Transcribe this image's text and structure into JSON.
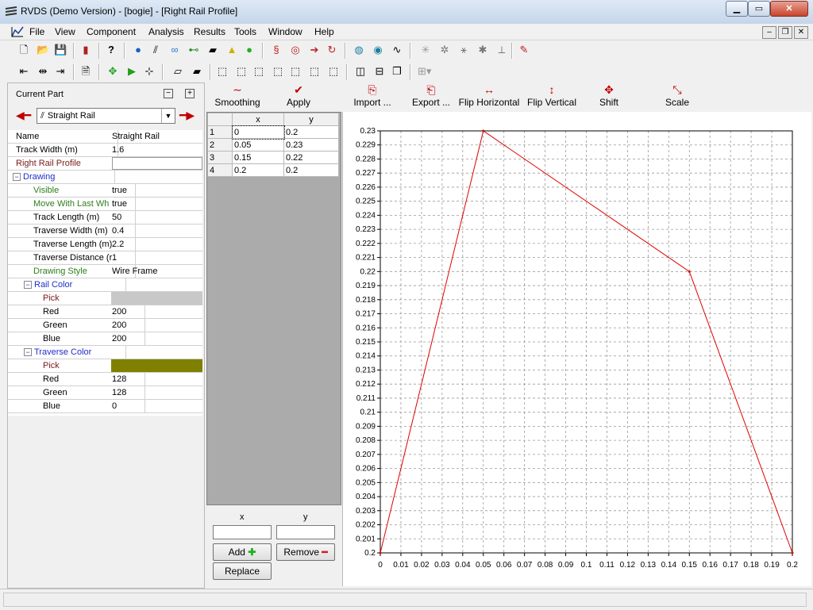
{
  "window": {
    "title": "RVDS (Demo Version) - [bogie] - [Right Rail Profile]"
  },
  "menu": [
    "File",
    "View",
    "Component",
    "Analysis",
    "Results",
    "Tools",
    "Window",
    "Help"
  ],
  "current_part": {
    "label": "Current Part",
    "selected": "Straight Rail"
  },
  "properties": [
    {
      "name": "Name",
      "value": "Straight Rail",
      "style": "plain",
      "indent": 0
    },
    {
      "name": "Track Width (m)",
      "value": "1.6",
      "style": "plain",
      "indent": 0
    },
    {
      "name": "Right Rail Profile",
      "value": "",
      "style": "maroon",
      "indent": 0
    },
    {
      "name": "Drawing",
      "value": "",
      "style": "cat",
      "indent": 0,
      "category": true
    },
    {
      "name": "Visible",
      "value": "true",
      "style": "green",
      "indent": 1
    },
    {
      "name": "Move With Last Wh",
      "value": "true",
      "style": "green",
      "indent": 1
    },
    {
      "name": "Track Length (m)",
      "value": "50",
      "style": "plain",
      "indent": 1
    },
    {
      "name": "Traverse Width (m)",
      "value": "0.4",
      "style": "plain",
      "indent": 1
    },
    {
      "name": "Traverse Length (m)",
      "value": "2.2",
      "style": "plain",
      "indent": 1
    },
    {
      "name": "Traverse Distance (r",
      "value": "1",
      "style": "plain",
      "indent": 1
    },
    {
      "name": "Drawing Style",
      "value": "Wire Frame",
      "style": "green",
      "indent": 1
    },
    {
      "name": "Rail Color",
      "value": "",
      "style": "cat",
      "indent": 1,
      "category": true
    },
    {
      "name": "Pick",
      "value": "",
      "style": "maroon",
      "indent": 2,
      "swatch": "#c8c8c8"
    },
    {
      "name": "Red",
      "value": "200",
      "style": "plain",
      "indent": 2
    },
    {
      "name": "Green",
      "value": "200",
      "style": "plain",
      "indent": 2
    },
    {
      "name": "Blue",
      "value": "200",
      "style": "plain",
      "indent": 2
    },
    {
      "name": "Traverse Color",
      "value": "",
      "style": "cat",
      "indent": 1,
      "category": true
    },
    {
      "name": "Pick",
      "value": "",
      "style": "maroon",
      "indent": 2,
      "swatch": "#808000"
    },
    {
      "name": "Red",
      "value": "128",
      "style": "plain",
      "indent": 2
    },
    {
      "name": "Green",
      "value": "128",
      "style": "plain",
      "indent": 2
    },
    {
      "name": "Blue",
      "value": "0",
      "style": "plain",
      "indent": 2
    }
  ],
  "actions": [
    {
      "label": "Smoothing",
      "icon": "smoothing-icon",
      "glyph": "∼",
      "color": "#c00000"
    },
    {
      "label": "Apply",
      "icon": "checkmark-icon",
      "glyph": "✔",
      "color": "#c00000"
    },
    {
      "label": "Import ...",
      "icon": "import-icon",
      "glyph": "⎘",
      "color": "#c00000"
    },
    {
      "label": "Export ...",
      "icon": "export-icon",
      "glyph": "⎗",
      "color": "#c00000"
    },
    {
      "label": "Flip Horizontal",
      "icon": "flip-horizontal-icon",
      "glyph": "↔",
      "color": "#c00000"
    },
    {
      "label": "Flip Vertical",
      "icon": "flip-vertical-icon",
      "glyph": "↕",
      "color": "#c00000"
    },
    {
      "label": "Shift",
      "icon": "shift-icon",
      "glyph": "✥",
      "color": "#c00000"
    },
    {
      "label": "Scale",
      "icon": "scale-icon",
      "glyph": "⤡",
      "color": "#c00000"
    }
  ],
  "table": {
    "columns": [
      "x",
      "y"
    ],
    "rows": [
      {
        "id": "1",
        "x": "0",
        "y": "0.2"
      },
      {
        "id": "2",
        "x": "0.05",
        "y": "0.23"
      },
      {
        "id": "3",
        "x": "0.15",
        "y": "0.22"
      },
      {
        "id": "4",
        "x": "0.2",
        "y": "0.2"
      }
    ]
  },
  "input": {
    "x_label": "x",
    "y_label": "y",
    "x_value": "",
    "y_value": "",
    "add_label": "Add",
    "remove_label": "Remove",
    "replace_label": "Replace"
  },
  "chart_data": {
    "type": "line",
    "x": [
      0,
      0.05,
      0.15,
      0.2
    ],
    "y": [
      0.2,
      0.23,
      0.22,
      0.2
    ],
    "series_color": "#e00000",
    "xlim": [
      0,
      0.2
    ],
    "ylim": [
      0.2,
      0.23
    ],
    "x_ticks": [
      "0",
      "0.01",
      "0.02",
      "0.03",
      "0.04",
      "0.05",
      "0.06",
      "0.07",
      "0.08",
      "0.09",
      "0.1",
      "0.11",
      "0.12",
      "0.13",
      "0.14",
      "0.15",
      "0.16",
      "0.17",
      "0.18",
      "0.19",
      "0.2"
    ],
    "y_ticks": [
      "0.2",
      "0.201",
      "0.202",
      "0.203",
      "0.204",
      "0.205",
      "0.206",
      "0.207",
      "0.208",
      "0.209",
      "0.21",
      "0.211",
      "0.212",
      "0.213",
      "0.214",
      "0.215",
      "0.216",
      "0.217",
      "0.218",
      "0.219",
      "0.22",
      "0.221",
      "0.222",
      "0.223",
      "0.224",
      "0.225",
      "0.226",
      "0.227",
      "0.228",
      "0.229",
      "0.23"
    ],
    "grid": true,
    "title": "",
    "xlabel": "",
    "ylabel": ""
  }
}
